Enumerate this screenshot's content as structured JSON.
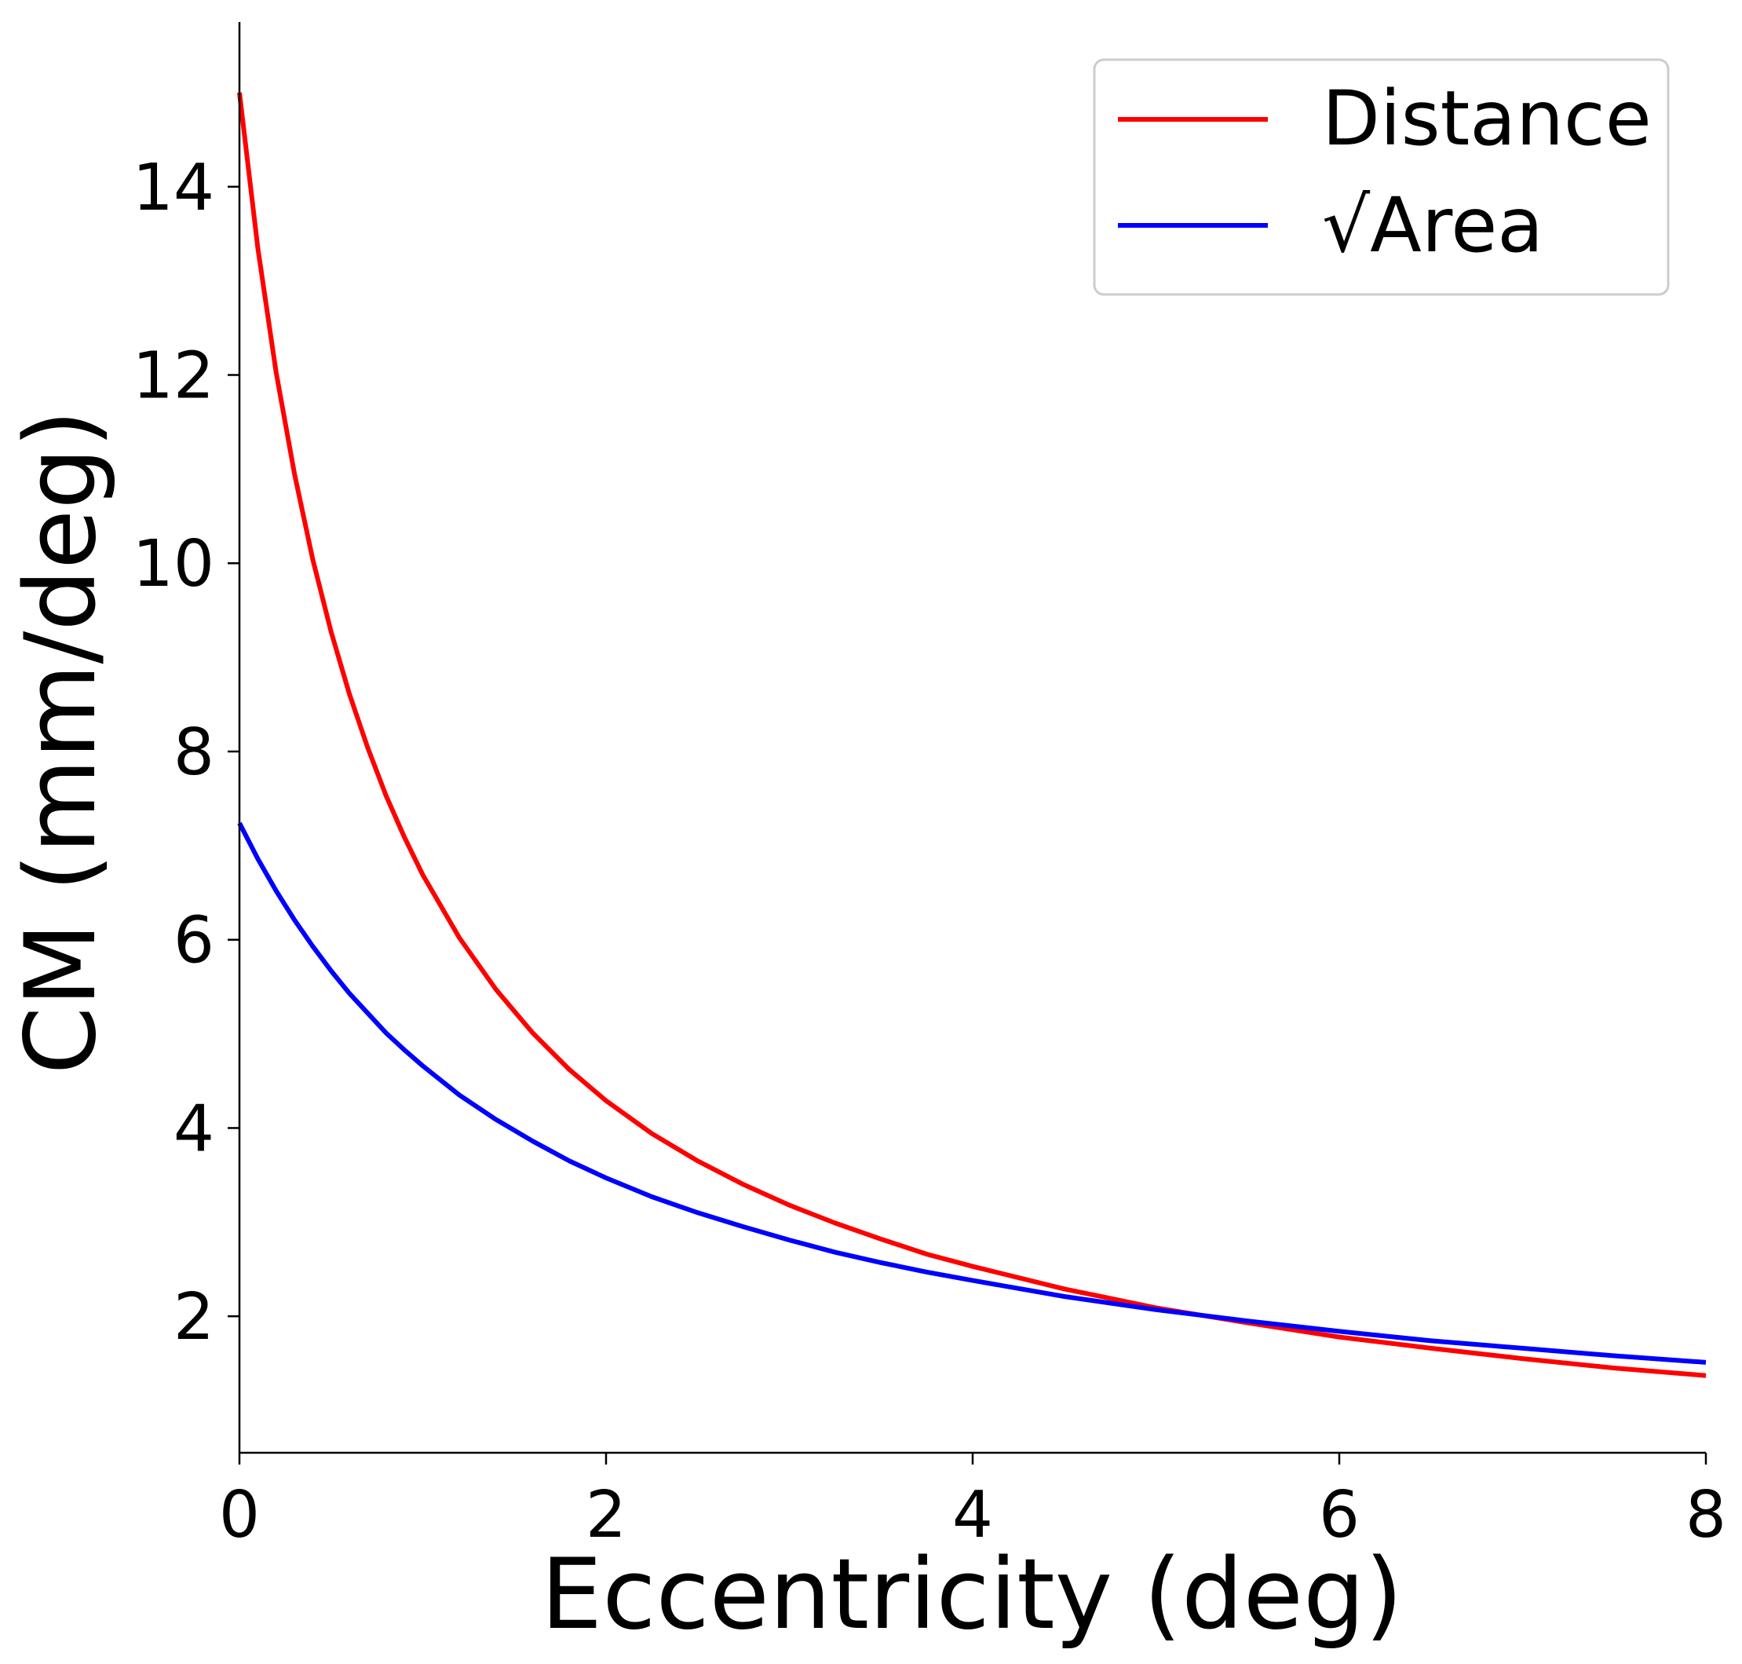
{
  "chart_data": {
    "type": "line",
    "title": "",
    "xlabel": "Eccentricity (deg)",
    "ylabel": "CM (mm/deg)",
    "xlim": [
      0,
      8
    ],
    "ylim": [
      0.55,
      15.75
    ],
    "xticks": [
      0,
      2,
      4,
      6,
      8
    ],
    "xtick_labels": [
      "0",
      "2",
      "4",
      "6",
      "8"
    ],
    "yticks": [
      2,
      4,
      6,
      8,
      10,
      12,
      14
    ],
    "ytick_labels": [
      "2",
      "4",
      "6",
      "8",
      "10",
      "12",
      "14"
    ],
    "grid": false,
    "legend_position": "top-right",
    "x": [
      0,
      0.1,
      0.2,
      0.3,
      0.4,
      0.5,
      0.6,
      0.7,
      0.8,
      0.9,
      1.0,
      1.2,
      1.4,
      1.6,
      1.8,
      2.0,
      2.25,
      2.5,
      2.75,
      3.0,
      3.25,
      3.5,
      3.75,
      4.0,
      4.5,
      5.0,
      5.5,
      6.0,
      6.5,
      7.0,
      7.5,
      8.0
    ],
    "series": [
      {
        "name": "Distance",
        "color": "#ff0000",
        "values": [
          15.0,
          13.35,
          12.03,
          10.95,
          10.04,
          9.27,
          8.61,
          8.04,
          7.53,
          7.09,
          6.69,
          6.02,
          5.47,
          5.01,
          4.62,
          4.29,
          3.94,
          3.65,
          3.4,
          3.18,
          2.99,
          2.82,
          2.66,
          2.53,
          2.29,
          2.09,
          1.93,
          1.78,
          1.66,
          1.55,
          1.45,
          1.37
        ]
      },
      {
        "name": "√Area",
        "color": "#0000ff",
        "values": [
          7.24,
          6.86,
          6.52,
          6.21,
          5.93,
          5.67,
          5.43,
          5.22,
          5.01,
          4.83,
          4.66,
          4.35,
          4.09,
          3.86,
          3.65,
          3.47,
          3.27,
          3.1,
          2.95,
          2.81,
          2.68,
          2.57,
          2.47,
          2.38,
          2.21,
          2.07,
          1.95,
          1.84,
          1.74,
          1.66,
          1.58,
          1.51
        ]
      }
    ]
  }
}
